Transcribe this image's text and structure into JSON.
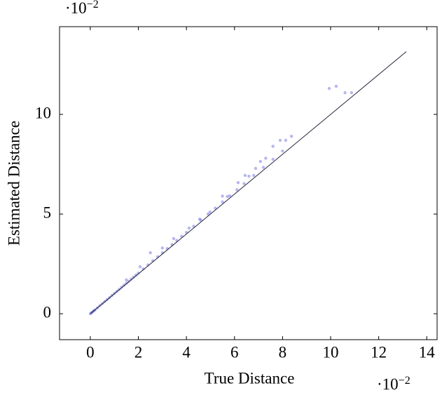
{
  "chart_data": {
    "type": "scatter",
    "x_label": "True Distance",
    "y_label": "Estimated Distance",
    "x_multiplier": {
      "base": "·10",
      "exponent": "−2"
    },
    "y_multiplier": {
      "base": "·10",
      "exponent": "−2"
    },
    "xlim": [
      -1.28,
      14.43
    ],
    "ylim": [
      -1.3,
      14.4
    ],
    "xticks": [
      0,
      2,
      4,
      6,
      8,
      10,
      12,
      14
    ],
    "yticks": [
      0,
      5,
      10
    ],
    "series": [
      {
        "color": "#1010cc",
        "x": [
          0,
          0.05,
          0.1,
          0.15,
          0.2,
          0.3,
          0.4,
          0.5,
          0.6,
          0.7,
          0.8,
          0.9,
          1.0,
          1.1,
          1.2,
          1.3,
          1.4,
          1.5,
          1.6,
          1.7,
          1.8,
          1.9,
          2.0,
          2.2,
          2.4,
          2.6,
          2.8,
          3.0,
          3.2,
          3.4,
          3.6,
          3.8,
          4.0,
          4.3,
          4.6,
          4.9,
          5.2,
          5.5,
          5.8,
          6.1,
          6.4,
          6.8,
          7.2,
          7.6,
          8.0,
          9.94,
          10.23,
          10.6,
          10.87,
          8.37,
          7.9,
          8.13,
          7.6,
          7.3,
          7.08,
          6.88,
          6.44,
          6.15,
          5.7,
          4.98,
          4.55,
          4.11,
          3.47,
          2.5,
          2.07,
          1.5,
          3.0,
          5.5,
          6.6
        ],
        "values": [
          0,
          0.05,
          0.1,
          0.15,
          0.2,
          0.3,
          0.41,
          0.51,
          0.61,
          0.71,
          0.81,
          0.92,
          1.02,
          1.12,
          1.22,
          1.33,
          1.43,
          1.53,
          1.63,
          1.74,
          1.84,
          1.94,
          2.04,
          2.25,
          2.45,
          2.66,
          2.86,
          3.06,
          3.27,
          3.47,
          3.68,
          3.88,
          4.08,
          4.39,
          4.69,
          5.0,
          5.3,
          5.61,
          5.92,
          6.22,
          6.53,
          6.94,
          7.34,
          7.75,
          8.16,
          11.3,
          11.41,
          11.09,
          11.09,
          8.9,
          8.7,
          8.7,
          8.4,
          7.8,
          7.64,
          7.29,
          6.94,
          6.58,
          5.88,
          5.1,
          4.75,
          4.3,
          3.77,
          3.06,
          2.36,
          1.7,
          3.3,
          5.9,
          6.9
        ]
      }
    ],
    "reference_line": {
      "x": [
        0,
        13.15
      ],
      "values": [
        0,
        13.15
      ],
      "color": "#22223a"
    }
  }
}
